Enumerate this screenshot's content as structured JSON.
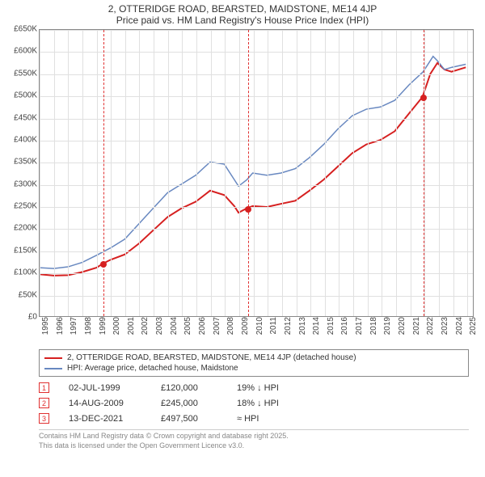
{
  "title_line1": "2, OTTERIDGE ROAD, BEARSTED, MAIDSTONE, ME14 4JP",
  "title_line2": "Price paid vs. HM Land Registry's House Price Index (HPI)",
  "chart": {
    "type": "line",
    "background_color": "#ffffff",
    "grid_color": "#e0e0e0",
    "axis_color": "#888888",
    "xlim": [
      1995,
      2025.5
    ],
    "ylim": [
      0,
      650000
    ],
    "ytick_step": 50000,
    "yticks": [
      "£0",
      "£50K",
      "£100K",
      "£150K",
      "£200K",
      "£250K",
      "£300K",
      "£350K",
      "£400K",
      "£450K",
      "£500K",
      "£550K",
      "£600K",
      "£650K"
    ],
    "xticks": [
      1995,
      1996,
      1997,
      1998,
      1999,
      2000,
      2001,
      2002,
      2003,
      2004,
      2005,
      2006,
      2007,
      2008,
      2009,
      2010,
      2011,
      2012,
      2013,
      2014,
      2015,
      2016,
      2017,
      2018,
      2019,
      2020,
      2021,
      2022,
      2023,
      2024,
      2025
    ],
    "label_fontsize": 10,
    "series": [
      {
        "name": "address_series",
        "color": "#d62020",
        "width": 2,
        "data": [
          [
            1995,
            95000
          ],
          [
            1996,
            92000
          ],
          [
            1997,
            93000
          ],
          [
            1998,
            100000
          ],
          [
            1999,
            110000
          ],
          [
            1999.5,
            120000
          ],
          [
            2000,
            128000
          ],
          [
            2001,
            140000
          ],
          [
            2002,
            165000
          ],
          [
            2003,
            195000
          ],
          [
            2004,
            225000
          ],
          [
            2005,
            245000
          ],
          [
            2006,
            260000
          ],
          [
            2007,
            285000
          ],
          [
            2008,
            275000
          ],
          [
            2008.7,
            250000
          ],
          [
            2009,
            235000
          ],
          [
            2009.6,
            245000
          ],
          [
            2010,
            250000
          ],
          [
            2011,
            248000
          ],
          [
            2012,
            255000
          ],
          [
            2013,
            262000
          ],
          [
            2014,
            285000
          ],
          [
            2015,
            310000
          ],
          [
            2016,
            340000
          ],
          [
            2017,
            370000
          ],
          [
            2018,
            390000
          ],
          [
            2019,
            400000
          ],
          [
            2020,
            420000
          ],
          [
            2021,
            460000
          ],
          [
            2021.95,
            497500
          ],
          [
            2022.5,
            550000
          ],
          [
            2023,
            575000
          ],
          [
            2023.5,
            560000
          ],
          [
            2024,
            555000
          ],
          [
            2025,
            565000
          ]
        ]
      },
      {
        "name": "hpi_series",
        "color": "#6888c0",
        "width": 1.5,
        "data": [
          [
            1995,
            110000
          ],
          [
            1996,
            108000
          ],
          [
            1997,
            112000
          ],
          [
            1998,
            122000
          ],
          [
            1999,
            138000
          ],
          [
            2000,
            155000
          ],
          [
            2001,
            175000
          ],
          [
            2002,
            210000
          ],
          [
            2003,
            245000
          ],
          [
            2004,
            280000
          ],
          [
            2005,
            300000
          ],
          [
            2006,
            320000
          ],
          [
            2007,
            350000
          ],
          [
            2008,
            345000
          ],
          [
            2008.7,
            310000
          ],
          [
            2009,
            295000
          ],
          [
            2009.6,
            310000
          ],
          [
            2010,
            325000
          ],
          [
            2011,
            320000
          ],
          [
            2012,
            325000
          ],
          [
            2013,
            335000
          ],
          [
            2014,
            360000
          ],
          [
            2015,
            390000
          ],
          [
            2016,
            425000
          ],
          [
            2017,
            455000
          ],
          [
            2018,
            470000
          ],
          [
            2019,
            475000
          ],
          [
            2020,
            490000
          ],
          [
            2021,
            525000
          ],
          [
            2022,
            555000
          ],
          [
            2022.7,
            590000
          ],
          [
            2023,
            580000
          ],
          [
            2023.5,
            560000
          ],
          [
            2024,
            565000
          ],
          [
            2025,
            572000
          ]
        ]
      }
    ],
    "sale_markers": [
      {
        "n": "1",
        "x": 1999.5,
        "y": 120000,
        "color": "#d62020"
      },
      {
        "n": "2",
        "x": 2009.6,
        "y": 245000,
        "color": "#d62020"
      },
      {
        "n": "3",
        "x": 2021.95,
        "y": 497500,
        "color": "#d62020"
      }
    ],
    "marker_line_color": "#e03030"
  },
  "legend": {
    "items": [
      {
        "color": "#d62020",
        "label": "2, OTTERIDGE ROAD, BEARSTED, MAIDSTONE, ME14 4JP (detached house)"
      },
      {
        "color": "#6888c0",
        "label": "HPI: Average price, detached house, Maidstone"
      }
    ]
  },
  "sales": [
    {
      "n": "1",
      "date": "02-JUL-1999",
      "price": "£120,000",
      "delta": "19% ↓ HPI"
    },
    {
      "n": "2",
      "date": "14-AUG-2009",
      "price": "£245,000",
      "delta": "18% ↓ HPI"
    },
    {
      "n": "3",
      "date": "13-DEC-2021",
      "price": "£497,500",
      "delta": "≈ HPI"
    }
  ],
  "footer_line1": "Contains HM Land Registry data © Crown copyright and database right 2025.",
  "footer_line2": "This data is licensed under the Open Government Licence v3.0."
}
